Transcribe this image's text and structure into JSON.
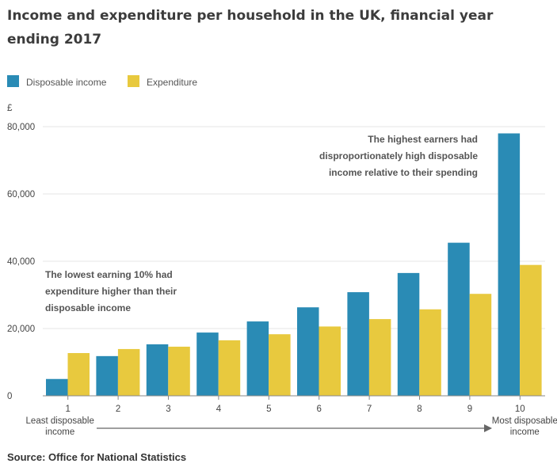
{
  "title": "Income and expenditure per household in the UK, financial year ending 2017",
  "source": "Source: Office for National Statistics",
  "colors": {
    "disposable": "#2a8bb5",
    "expenditure": "#e8c93e",
    "grid": "#e6e6e6",
    "axis": "#888888"
  },
  "chart_data": {
    "type": "bar",
    "categories": [
      "1",
      "2",
      "3",
      "4",
      "5",
      "6",
      "7",
      "8",
      "9",
      "10"
    ],
    "series": [
      {
        "name": "Disposable income",
        "values": [
          5000,
          11800,
          15300,
          18800,
          22100,
          26300,
          30800,
          36500,
          45500,
          78000
        ]
      },
      {
        "name": "Expenditure",
        "values": [
          12700,
          13900,
          14600,
          16500,
          18300,
          20600,
          22800,
          25700,
          30300,
          38900
        ]
      }
    ],
    "ylabel": "£",
    "ylim": [
      0,
      80000
    ],
    "yticks": [
      0,
      20000,
      40000,
      60000,
      80000
    ],
    "ytick_labels": [
      "0",
      "20,000",
      "40,000",
      "60,000",
      "80,000"
    ],
    "grid": true,
    "legend": "top-left",
    "x_end_labels": {
      "left": [
        "Least disposable",
        "income"
      ],
      "right": [
        "Most disposable",
        "income"
      ]
    },
    "annotations": [
      {
        "lines": [
          "The lowest earning 10% had",
          "expenditure higher than their",
          "disposable income"
        ]
      },
      {
        "lines": [
          "The highest earners had",
          "disproportionately high disposable",
          "income relative to their spending"
        ]
      }
    ]
  }
}
